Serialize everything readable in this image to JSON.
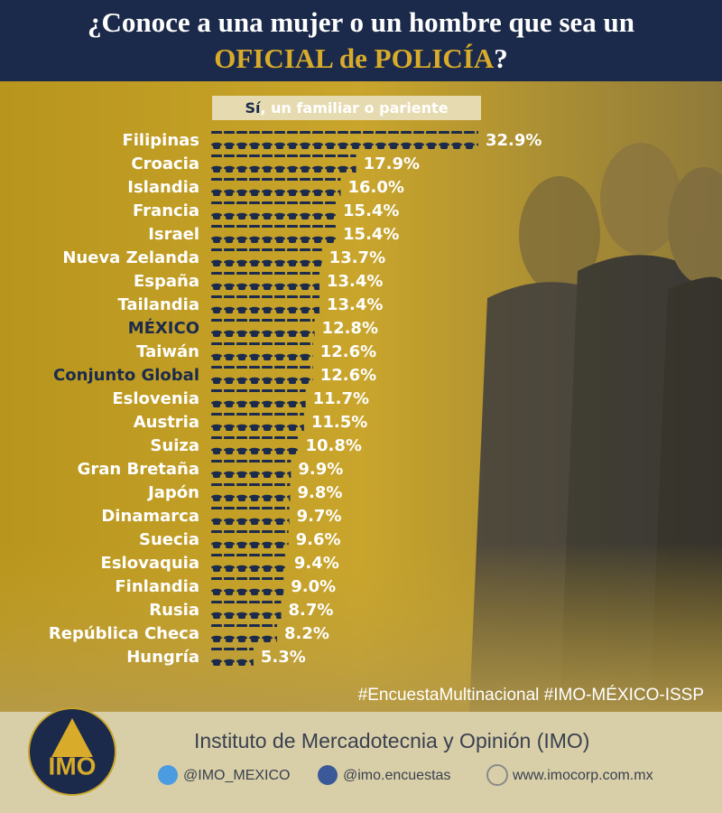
{
  "chart_data": {
    "type": "pictogram-bar",
    "title": "¿Conoce a una mujer o un hombre que sea un",
    "title_highlight": "OFICIAL de POLICÍA",
    "title_end": "?",
    "subtitle_lead": "Sí",
    "subtitle": ", un familiar o pariente",
    "categories": [
      "Filipinas",
      "Croacia",
      "Islandia",
      "Francia",
      "Israel",
      "Nueva Zelanda",
      "España",
      "Tailandia",
      "MÉXICO",
      "Taiwán",
      "Conjunto Global",
      "Eslovenia",
      "Austria",
      "Suiza",
      "Gran Bretaña",
      "Japón",
      "Dinamarca",
      "Suecia",
      "Eslovaquia",
      "Finlandia",
      "Rusia",
      "República Checa",
      "Hungría"
    ],
    "values": [
      32.9,
      17.9,
      16.0,
      15.4,
      15.4,
      13.7,
      13.4,
      13.4,
      12.8,
      12.6,
      12.6,
      11.7,
      11.5,
      10.8,
      9.9,
      9.8,
      9.7,
      9.6,
      9.4,
      9.0,
      8.7,
      8.2,
      5.3
    ],
    "value_labels": [
      "32.9%",
      "17.9%",
      "16.0%",
      "15.4%",
      "15.4%",
      "13.7%",
      "13.4%",
      "13.4%",
      "12.8%",
      "12.6%",
      "12.6%",
      "11.7%",
      "11.5%",
      "10.8%",
      "9.9%",
      "9.8%",
      "9.7%",
      "9.6%",
      "9.4%",
      "9.0%",
      "8.7%",
      "8.2%",
      "5.3%"
    ],
    "color": "#1c2b4b",
    "highlight": [
      8,
      10
    ],
    "highlight_color": "#1c2b4b"
  },
  "footer": {
    "hashtag": "#EncuestaMultinacional #IMO-MÉXICO-ISSP",
    "logo": "IMO",
    "institute": "Instituto de Mercadotecnia y Opinión (IMO)",
    "twitter": "@IMO_MEXICO",
    "facebook": "@imo.encuestas",
    "web": "www.imocorp.com.mx"
  }
}
